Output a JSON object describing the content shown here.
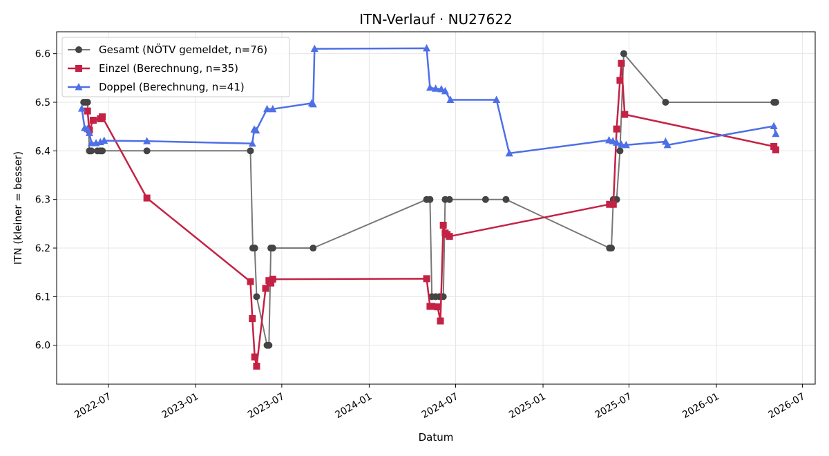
{
  "chart_data": {
    "type": "line",
    "title": "ITN-Verlauf · NU27622",
    "xlabel": "Datum",
    "ylabel": "ITN  (kleiner = besser)",
    "x_ticks": [
      "2022-07",
      "2023-01",
      "2023-07",
      "2024-01",
      "2024-07",
      "2025-01",
      "2025-07",
      "2026-01",
      "2026-07"
    ],
    "y_ticks": [
      "6.0",
      "6.1",
      "6.2",
      "6.3",
      "6.4",
      "6.5",
      "6.6"
    ],
    "xlim": [
      "2022-03-14",
      "2026-07-28"
    ],
    "ylim": [
      5.92,
      6.645
    ],
    "grid": true,
    "legend_position": "top-left",
    "series": [
      {
        "name": "Gesamt (NÖTV gemeldet, n=76)",
        "color": "#777777",
        "marker_color": "#444444",
        "marker": "circle",
        "points": [
          [
            "2022-05-10",
            6.5
          ],
          [
            "2022-05-14",
            6.5
          ],
          [
            "2022-05-18",
            6.5
          ],
          [
            "2022-05-22",
            6.4
          ],
          [
            "2022-05-26",
            6.4
          ],
          [
            "2022-06-08",
            6.4
          ],
          [
            "2022-06-14",
            6.4
          ],
          [
            "2022-06-18",
            6.4
          ],
          [
            "2022-09-20",
            6.4
          ],
          [
            "2023-04-26",
            6.4
          ],
          [
            "2023-05-01",
            6.2
          ],
          [
            "2023-05-05",
            6.2
          ],
          [
            "2023-05-09",
            6.1
          ],
          [
            "2023-05-31",
            6.0
          ],
          [
            "2023-06-04",
            6.0
          ],
          [
            "2023-06-08",
            6.2
          ],
          [
            "2023-06-12",
            6.2
          ],
          [
            "2023-09-05",
            6.2
          ],
          [
            "2024-05-01",
            6.3
          ],
          [
            "2024-05-08",
            6.3
          ],
          [
            "2024-05-12",
            6.1
          ],
          [
            "2024-05-20",
            6.1
          ],
          [
            "2024-05-28",
            6.1
          ],
          [
            "2024-06-05",
            6.1
          ],
          [
            "2024-06-09",
            6.3
          ],
          [
            "2024-06-18",
            6.3
          ],
          [
            "2024-09-02",
            6.3
          ],
          [
            "2024-10-15",
            6.3
          ],
          [
            "2025-05-21",
            6.2
          ],
          [
            "2025-05-25",
            6.2
          ],
          [
            "2025-05-29",
            6.3
          ],
          [
            "2025-06-05",
            6.3
          ],
          [
            "2025-06-12",
            6.4
          ],
          [
            "2025-06-20",
            6.6
          ],
          [
            "2025-09-16",
            6.5
          ],
          [
            "2026-05-02",
            6.5
          ],
          [
            "2026-05-06",
            6.5
          ]
        ]
      },
      {
        "name": "Einzel (Berechnung, n=35)",
        "color": "#c42244",
        "marker_color": "#c42244",
        "marker": "square",
        "points": [
          [
            "2022-05-18",
            6.482
          ],
          [
            "2022-05-22",
            6.443
          ],
          [
            "2022-05-30",
            6.463
          ],
          [
            "2022-06-14",
            6.466
          ],
          [
            "2022-06-18",
            6.47
          ],
          [
            "2022-09-20",
            6.303
          ],
          [
            "2023-04-26",
            6.131
          ],
          [
            "2023-04-30",
            6.055
          ],
          [
            "2023-05-05",
            5.976
          ],
          [
            "2023-05-09",
            5.957
          ],
          [
            "2023-05-28",
            6.117
          ],
          [
            "2023-06-04",
            6.133
          ],
          [
            "2023-06-08",
            6.128
          ],
          [
            "2023-06-12",
            6.136
          ],
          [
            "2024-05-01",
            6.137
          ],
          [
            "2024-05-08",
            6.08
          ],
          [
            "2024-05-12",
            6.08
          ],
          [
            "2024-05-24",
            6.079
          ],
          [
            "2024-05-30",
            6.05
          ],
          [
            "2024-06-05",
            6.247
          ],
          [
            "2024-06-09",
            6.231
          ],
          [
            "2024-06-13",
            6.228
          ],
          [
            "2024-06-18",
            6.224
          ],
          [
            "2025-05-21",
            6.29
          ],
          [
            "2025-05-29",
            6.29
          ],
          [
            "2025-06-05",
            6.445
          ],
          [
            "2025-06-12",
            6.545
          ],
          [
            "2025-06-15",
            6.58
          ],
          [
            "2025-06-22",
            6.475
          ],
          [
            "2026-05-02",
            6.409
          ],
          [
            "2026-05-06",
            6.402
          ]
        ]
      },
      {
        "name": "Doppel (Berechnung, n=41)",
        "color": "#4e6fe6",
        "marker_color": "#4e6fe6",
        "marker": "triangle",
        "points": [
          [
            "2022-05-06",
            6.487
          ],
          [
            "2022-05-12",
            6.447
          ],
          [
            "2022-05-18",
            6.445
          ],
          [
            "2022-05-22",
            6.437
          ],
          [
            "2022-05-26",
            6.416
          ],
          [
            "2022-06-05",
            6.416
          ],
          [
            "2022-06-14",
            6.418
          ],
          [
            "2022-06-22",
            6.421
          ],
          [
            "2022-09-20",
            6.42
          ],
          [
            "2023-04-30",
            6.415
          ],
          [
            "2023-05-04",
            6.444
          ],
          [
            "2023-05-08",
            6.442
          ],
          [
            "2023-05-31",
            6.486
          ],
          [
            "2023-06-12",
            6.486
          ],
          [
            "2023-09-02",
            6.498
          ],
          [
            "2023-09-05",
            6.496
          ],
          [
            "2023-09-08",
            6.61
          ],
          [
            "2024-05-01",
            6.611
          ],
          [
            "2024-05-08",
            6.53
          ],
          [
            "2024-05-20",
            6.528
          ],
          [
            "2024-06-01",
            6.527
          ],
          [
            "2024-06-09",
            6.523
          ],
          [
            "2024-06-20",
            6.505
          ],
          [
            "2024-09-25",
            6.505
          ],
          [
            "2024-10-22",
            6.395
          ],
          [
            "2025-05-20",
            6.422
          ],
          [
            "2025-05-28",
            6.42
          ],
          [
            "2025-06-05",
            6.417
          ],
          [
            "2025-06-15",
            6.413
          ],
          [
            "2025-06-25",
            6.412
          ],
          [
            "2025-09-16",
            6.419
          ],
          [
            "2025-09-20",
            6.412
          ],
          [
            "2026-05-02",
            6.451
          ],
          [
            "2026-05-06",
            6.435
          ]
        ]
      }
    ]
  }
}
